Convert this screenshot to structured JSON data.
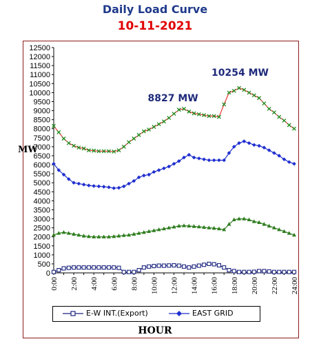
{
  "header": {
    "title": "Daily Load Curve",
    "date": "10-11-2021"
  },
  "chart_data": {
    "type": "line",
    "ylabel": "MW",
    "xlabel": "HOUR",
    "ylim": [
      0,
      12500
    ],
    "yticks": [
      "0",
      "500",
      "1000",
      "1500",
      "2000",
      "2500",
      "3000",
      "3500",
      "4000",
      "4500",
      "5000",
      "5500",
      "6000",
      "6500",
      "7000",
      "7500",
      "8000",
      "8500",
      "9000",
      "9500",
      "10000",
      "10500",
      "11000",
      "11500",
      "12000",
      "12500"
    ],
    "xlim": [
      0,
      24
    ],
    "xticks": [
      "0:00",
      "2:00",
      "4:00",
      "6:00",
      "8:00",
      "10:00",
      "12:00",
      "14:00",
      "16:00",
      "18:00",
      "20:00",
      "22:00",
      "24:00"
    ],
    "x": [
      0,
      0.5,
      1,
      1.5,
      2,
      2.5,
      3,
      3.5,
      4,
      4.5,
      5,
      5.5,
      6,
      6.5,
      7,
      7.5,
      8,
      8.5,
      9,
      9.5,
      10,
      10.5,
      11,
      11.5,
      12,
      12.5,
      13,
      13.5,
      14,
      14.5,
      15,
      15.5,
      16,
      16.5,
      17,
      17.5,
      18,
      18.5,
      19,
      19.5,
      20,
      20.5,
      21,
      21.5,
      22,
      22.5,
      23,
      23.5,
      24
    ],
    "series": [
      {
        "name": "E-W INT.(Export)",
        "color": "#1a237e",
        "marker": "square",
        "values": [
          50,
          150,
          250,
          280,
          300,
          300,
          300,
          300,
          300,
          300,
          300,
          300,
          300,
          280,
          50,
          50,
          50,
          150,
          300,
          350,
          380,
          400,
          400,
          410,
          420,
          400,
          350,
          300,
          350,
          400,
          450,
          500,
          480,
          420,
          300,
          150,
          100,
          50,
          50,
          50,
          60,
          100,
          100,
          80,
          50,
          50,
          50,
          50,
          50
        ]
      },
      {
        "name": "EAST GRID",
        "color": "#1f2ecf",
        "marker": "diamond",
        "values": [
          6050,
          5700,
          5450,
          5200,
          5000,
          4950,
          4900,
          4850,
          4820,
          4800,
          4780,
          4750,
          4700,
          4720,
          4800,
          4950,
          5100,
          5300,
          5400,
          5450,
          5600,
          5700,
          5800,
          5900,
          6050,
          6200,
          6400,
          6550,
          6400,
          6350,
          6300,
          6250,
          6250,
          6250,
          6250,
          6650,
          7000,
          7200,
          7300,
          7200,
          7100,
          7050,
          6950,
          6800,
          6650,
          6500,
          6300,
          6150,
          6050
        ]
      },
      {
        "name": "",
        "color": "#2e7d1e",
        "marker": "triangle",
        "values": [
          2100,
          2200,
          2250,
          2200,
          2150,
          2100,
          2050,
          2020,
          2000,
          2000,
          2000,
          2000,
          2020,
          2050,
          2080,
          2100,
          2150,
          2200,
          2250,
          2300,
          2350,
          2400,
          2450,
          2500,
          2550,
          2600,
          2620,
          2600,
          2580,
          2560,
          2530,
          2500,
          2480,
          2450,
          2400,
          2700,
          2950,
          3000,
          3000,
          2950,
          2850,
          2800,
          2700,
          2600,
          2500,
          2400,
          2300,
          2200,
          2100
        ]
      },
      {
        "name": "",
        "color": "#e53935",
        "marker": "x",
        "markerColor": "#1b8a1b",
        "values": [
          8150,
          7800,
          7450,
          7200,
          7050,
          6950,
          6900,
          6800,
          6780,
          6750,
          6750,
          6750,
          6730,
          6800,
          7000,
          7250,
          7450,
          7650,
          7850,
          7950,
          8100,
          8250,
          8400,
          8600,
          8827,
          9050,
          9100,
          8950,
          8850,
          8800,
          8750,
          8700,
          8700,
          8650,
          9350,
          10000,
          10100,
          10254,
          10150,
          10000,
          9850,
          9700,
          9400,
          9100,
          8900,
          8650,
          8450,
          8200,
          8000
        ]
      }
    ],
    "annotations": [
      {
        "text": "8827 MW",
        "x": 12,
        "y": 8827
      },
      {
        "text": "10254 MW",
        "x": 18.5,
        "y": 10254
      }
    ]
  }
}
